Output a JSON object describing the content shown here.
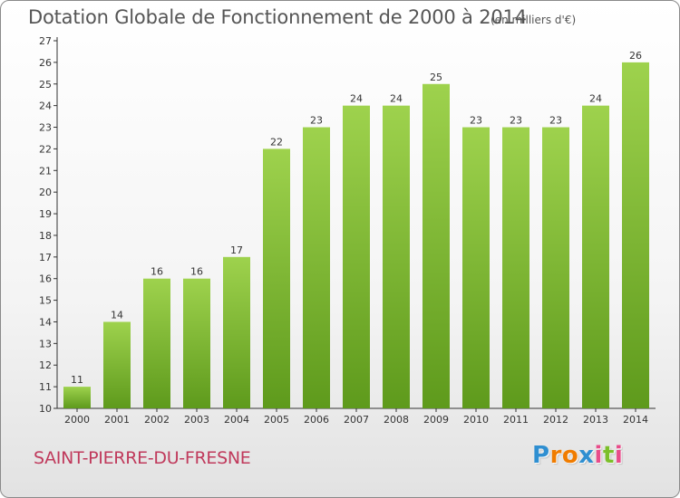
{
  "title": "Dotation Globale de Fonctionnement de 2000 à 2014",
  "unit_note": "(en milliers d'€)",
  "commune": "SAINT-PIERRE-DU-FRESNE",
  "logo": {
    "letters": [
      "P",
      "r",
      "o",
      "x",
      "i",
      "t",
      "i"
    ],
    "colors": [
      "#2f8fd1",
      "#f07c00",
      "#f07c00",
      "#2f8fd1",
      "#e84c8a",
      "#7cbf2a",
      "#e84c8a"
    ]
  },
  "colors": {
    "bar_light": "#9ed24d",
    "bar_dark": "#5e9a1c",
    "axis": "#333333"
  },
  "chart_data": {
    "type": "bar",
    "categories": [
      "2000",
      "2001",
      "2002",
      "2003",
      "2004",
      "2005",
      "2006",
      "2007",
      "2008",
      "2009",
      "2010",
      "2011",
      "2012",
      "2013",
      "2014"
    ],
    "values": [
      11,
      14,
      16,
      16,
      17,
      22,
      23,
      24,
      24,
      25,
      23,
      23,
      23,
      24,
      26
    ],
    "data_labels": [
      "11",
      "14",
      "16",
      "16",
      "17",
      "22",
      "23",
      "24",
      "24",
      "25",
      "23",
      "23",
      "23",
      "24",
      "26"
    ],
    "ylim": [
      10,
      27
    ],
    "yticks": [
      "10",
      "11",
      "12",
      "13",
      "14",
      "15",
      "16",
      "17",
      "18",
      "19",
      "20",
      "21",
      "22",
      "23",
      "24",
      "25",
      "26",
      "27"
    ],
    "grid": false,
    "legend": "none"
  }
}
